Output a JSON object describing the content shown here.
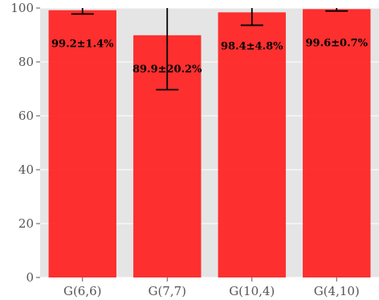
{
  "chart_data": {
    "type": "bar",
    "categories": [
      "G(6,6)",
      "G(7,7)",
      "G(10,4)",
      "G(4,10)"
    ],
    "values": [
      99.2,
      89.9,
      98.4,
      99.6
    ],
    "errors": [
      1.4,
      20.2,
      4.8,
      0.7
    ],
    "data_labels": [
      "99.2±1.4%",
      "89.9±20.2%",
      "98.4±4.8%",
      "99.6±0.7%"
    ],
    "title": "",
    "xlabel": "",
    "ylabel": "",
    "ylim": [
      0,
      100
    ],
    "yticks": [
      0,
      20,
      40,
      60,
      80,
      100
    ],
    "grid": true,
    "colors": {
      "bar": "#ff2020",
      "background": "#e5e5e5",
      "grid": "#ffffff",
      "errorbar": "#000000"
    }
  }
}
